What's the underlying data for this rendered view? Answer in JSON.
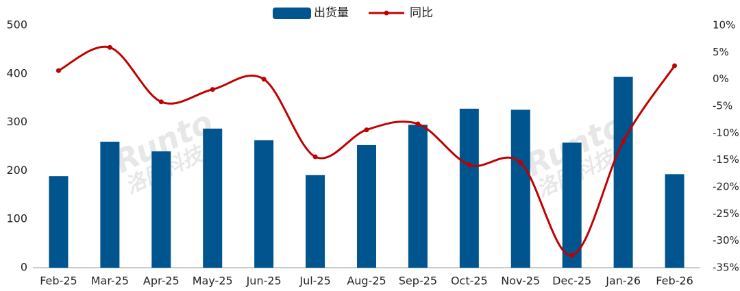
{
  "chart_data": {
    "type": "bar",
    "categories": [
      "Feb-25",
      "Mar-25",
      "Apr-25",
      "May-25",
      "Jun-25",
      "Jul-25",
      "Aug-25",
      "Sep-25",
      "Oct-25",
      "Nov-25",
      "Dec-25",
      "Jan-26",
      "Feb-26"
    ],
    "series": [
      {
        "name": "出货量",
        "type": "bar",
        "color": "#00558f",
        "values": [
          189,
          260,
          240,
          287,
          263,
          191,
          253,
          295,
          328,
          326,
          258,
          394,
          193
        ]
      },
      {
        "name": "同比",
        "type": "line",
        "axis": "y2",
        "color": "#c00000",
        "values": [
          1.6,
          5.9,
          -4.2,
          -1.9,
          0,
          -14.4,
          -9.4,
          -8.3,
          -15.9,
          -15.5,
          -32.7,
          -11.5,
          2.5
        ]
      }
    ],
    "ylim": [
      0,
      500
    ],
    "yticks": [
      0,
      100,
      200,
      300,
      400,
      500
    ],
    "y2lim": [
      -35,
      10
    ],
    "y2ticks": [
      {
        "value": 10,
        "label": "10%"
      },
      {
        "value": 5,
        "label": "5%"
      },
      {
        "value": 0,
        "label": "0%"
      },
      {
        "value": -5,
        "label": "-5%"
      },
      {
        "value": -10,
        "label": "-10%"
      },
      {
        "value": -15,
        "label": "-15%"
      },
      {
        "value": -20,
        "label": "-20%"
      },
      {
        "value": -25,
        "label": "-25%"
      },
      {
        "value": -30,
        "label": "-30%"
      },
      {
        "value": -35,
        "label": "-35%"
      }
    ],
    "legend": "top",
    "watermark": [
      "Runto",
      "洛图科技"
    ]
  }
}
